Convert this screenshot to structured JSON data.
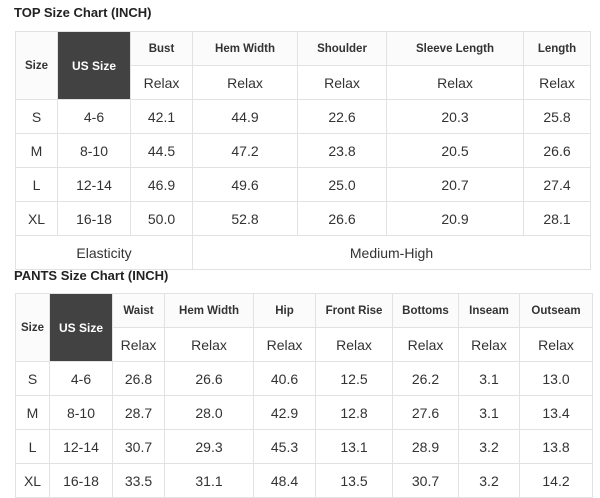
{
  "top": {
    "title": "TOP Size Chart (INCH)",
    "headers": [
      "Size",
      "US Size",
      "Bust",
      "Hem Width",
      "Shoulder",
      "Sleeve Length",
      "Length"
    ],
    "subheader": "Relax",
    "rows": [
      [
        "S",
        "4-6",
        "42.1",
        "44.9",
        "22.6",
        "20.3",
        "25.8"
      ],
      [
        "M",
        "8-10",
        "44.5",
        "47.2",
        "23.8",
        "20.5",
        "26.6"
      ],
      [
        "L",
        "12-14",
        "46.9",
        "49.6",
        "25.0",
        "20.7",
        "27.4"
      ],
      [
        "XL",
        "16-18",
        "50.0",
        "52.8",
        "26.6",
        "20.9",
        "28.1"
      ]
    ],
    "elasticity_label": "Elasticity",
    "elasticity_value": "Medium-High"
  },
  "pants": {
    "title": "PANTS Size Chart (INCH)",
    "headers": [
      "Size",
      "US Size",
      "Waist",
      "Hem Width",
      "Hip",
      "Front Rise",
      "Bottoms",
      "Inseam",
      "Outseam"
    ],
    "subheader": "Relax",
    "rows": [
      [
        "S",
        "4-6",
        "26.8",
        "26.6",
        "40.6",
        "12.5",
        "26.2",
        "3.1",
        "13.0"
      ],
      [
        "M",
        "8-10",
        "28.7",
        "28.0",
        "42.9",
        "12.8",
        "27.6",
        "3.1",
        "13.4"
      ],
      [
        "L",
        "12-14",
        "30.7",
        "29.3",
        "45.3",
        "13.1",
        "28.9",
        "3.2",
        "13.8"
      ],
      [
        "XL",
        "16-18",
        "33.5",
        "31.1",
        "48.4",
        "13.5",
        "30.7",
        "3.2",
        "14.2"
      ]
    ]
  }
}
